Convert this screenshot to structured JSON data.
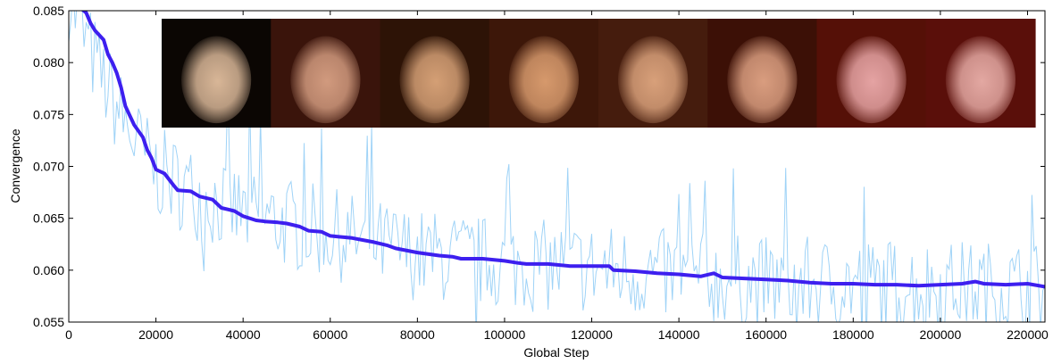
{
  "chart_data": {
    "type": "line",
    "xlabel": "Global Step",
    "ylabel": "Convergence",
    "xlim": [
      0,
      224000
    ],
    "ylim": [
      0.055,
      0.085
    ],
    "x_ticks": [
      0,
      20000,
      40000,
      60000,
      80000,
      100000,
      120000,
      140000,
      160000,
      180000,
      200000,
      220000
    ],
    "y_ticks": [
      0.055,
      0.06,
      0.065,
      0.07,
      0.075,
      0.08,
      0.085
    ],
    "x_tick_labels": [
      "0",
      "20000",
      "40000",
      "60000",
      "80000",
      "100000",
      "120000",
      "140000",
      "160000",
      "180000",
      "200000",
      "220000"
    ],
    "y_tick_labels": [
      "0.055",
      "0.060",
      "0.065",
      "0.070",
      "0.075",
      "0.080",
      "0.085"
    ],
    "grid": false,
    "legend": "none",
    "series": [
      {
        "role": "raw",
        "color": "#9fd3f7",
        "trend_x": [
          0,
          5000,
          10000,
          15000,
          20000,
          30000,
          40000,
          60000,
          80000,
          100000,
          120000,
          140000,
          160000,
          180000,
          200000,
          224000
        ],
        "trend_y": [
          0.0865,
          0.081,
          0.0765,
          0.0725,
          0.0695,
          0.0672,
          0.0655,
          0.0635,
          0.0615,
          0.0606,
          0.0602,
          0.0594,
          0.0588,
          0.0587,
          0.0585,
          0.0583
        ],
        "noise_amplitude": 0.0045
      },
      {
        "role": "smoothed",
        "color": "#3d1fef",
        "x": [
          0,
          2000,
          4000,
          5000,
          6000,
          8000,
          9000,
          10000,
          11000,
          12000,
          13000,
          15000,
          17000,
          18000,
          19000,
          20000,
          22000,
          24000,
          25000,
          28000,
          30000,
          33000,
          35000,
          38000,
          40000,
          43000,
          45000,
          48000,
          50000,
          53000,
          55000,
          58000,
          60000,
          65000,
          70000,
          73000,
          75000,
          80000,
          85000,
          88000,
          90000,
          95000,
          100000,
          103000,
          105000,
          110000,
          115000,
          120000,
          124000,
          125000,
          130000,
          135000,
          140000,
          145000,
          148000,
          150000,
          155000,
          160000,
          165000,
          170000,
          175000,
          180000,
          185000,
          190000,
          195000,
          200000,
          205000,
          208000,
          210000,
          215000,
          220000,
          224000
        ],
        "y": [
          0.0865,
          0.0855,
          0.0848,
          0.0838,
          0.0831,
          0.0822,
          0.0808,
          0.08,
          0.079,
          0.0776,
          0.0758,
          0.074,
          0.0728,
          0.0716,
          0.0708,
          0.0697,
          0.0693,
          0.0682,
          0.0677,
          0.0676,
          0.0671,
          0.0668,
          0.066,
          0.0657,
          0.0652,
          0.0648,
          0.0647,
          0.0646,
          0.0645,
          0.0642,
          0.0638,
          0.0637,
          0.0633,
          0.0631,
          0.0627,
          0.0624,
          0.0621,
          0.0617,
          0.0614,
          0.0613,
          0.0611,
          0.0611,
          0.0609,
          0.0607,
          0.0606,
          0.0606,
          0.0604,
          0.0604,
          0.0604,
          0.06,
          0.0599,
          0.0597,
          0.0596,
          0.0594,
          0.0597,
          0.0593,
          0.0592,
          0.0591,
          0.059,
          0.0588,
          0.0587,
          0.0587,
          0.0586,
          0.0586,
          0.0585,
          0.0586,
          0.0587,
          0.0589,
          0.0587,
          0.0586,
          0.0587,
          0.0584
        ]
      }
    ],
    "inset": {
      "frames": 8,
      "frame_colors": [
        [
          "#0b0603",
          "#d8b697"
        ],
        [
          "#3a140b",
          "#d19a7e"
        ],
        [
          "#2d1306",
          "#d49f75"
        ],
        [
          "#3d1709",
          "#d6996c"
        ],
        [
          "#451c0d",
          "#d8a07a"
        ],
        [
          "#3c1006",
          "#d99d7f"
        ],
        [
          "#551007",
          "#e5a3a3"
        ],
        [
          "#5a0f0a",
          "#e3a8a2"
        ]
      ]
    }
  }
}
